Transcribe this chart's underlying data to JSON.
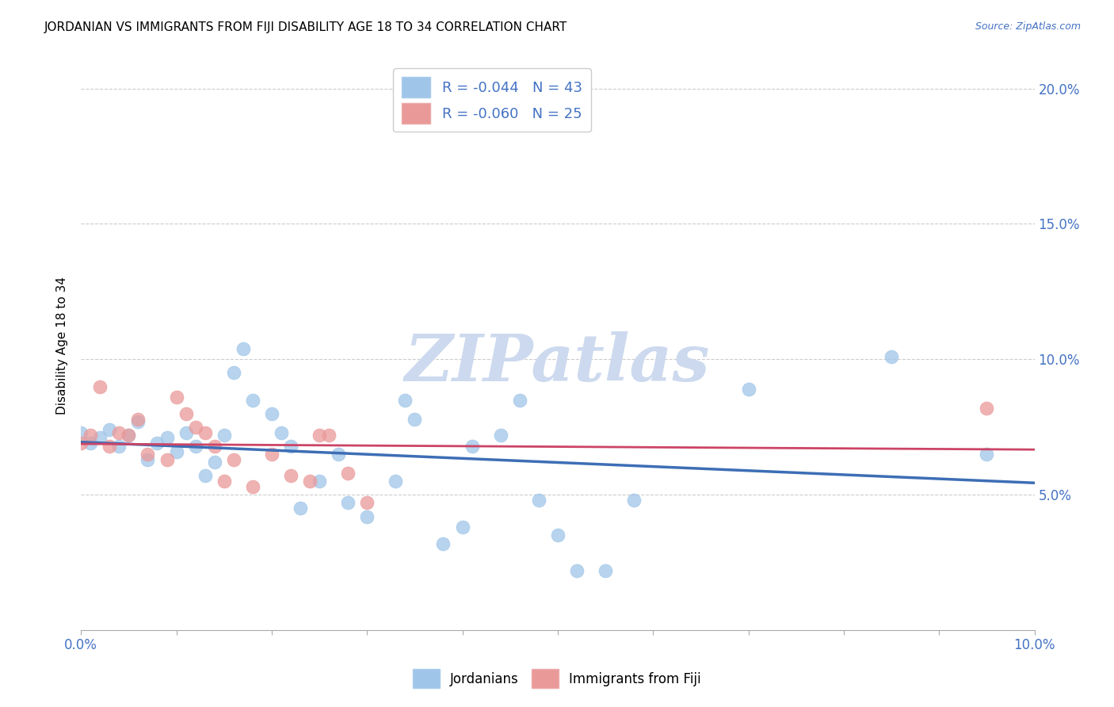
{
  "title": "JORDANIAN VS IMMIGRANTS FROM FIJI DISABILITY AGE 18 TO 34 CORRELATION CHART",
  "source": "Source: ZipAtlas.com",
  "ylabel": "Disability Age 18 to 34",
  "xlim": [
    0.0,
    0.1
  ],
  "ylim": [
    0.0,
    0.21
  ],
  "legend_r_blue": "R = -0.044",
  "legend_n_blue": "N = 43",
  "legend_r_pink": "R = -0.060",
  "legend_n_pink": "N = 25",
  "blue_color": "#9fc5e8",
  "pink_color": "#ea9999",
  "line_blue": "#3d6eb5",
  "line_pink": "#cc4466",
  "watermark": "ZIPatlas",
  "jordanians_x": [
    0.0,
    0.001,
    0.002,
    0.003,
    0.004,
    0.005,
    0.006,
    0.007,
    0.008,
    0.009,
    0.01,
    0.011,
    0.012,
    0.013,
    0.014,
    0.015,
    0.016,
    0.017,
    0.018,
    0.02,
    0.021,
    0.022,
    0.023,
    0.025,
    0.027,
    0.028,
    0.03,
    0.033,
    0.034,
    0.035,
    0.038,
    0.04,
    0.041,
    0.044,
    0.046,
    0.048,
    0.05,
    0.052,
    0.055,
    0.058,
    0.07,
    0.085,
    0.095
  ],
  "jordanians_y": [
    0.073,
    0.069,
    0.071,
    0.074,
    0.068,
    0.072,
    0.077,
    0.063,
    0.069,
    0.071,
    0.066,
    0.073,
    0.068,
    0.057,
    0.062,
    0.072,
    0.095,
    0.104,
    0.085,
    0.08,
    0.073,
    0.068,
    0.045,
    0.055,
    0.065,
    0.047,
    0.042,
    0.055,
    0.085,
    0.078,
    0.032,
    0.038,
    0.068,
    0.072,
    0.085,
    0.048,
    0.035,
    0.022,
    0.022,
    0.048,
    0.089,
    0.101,
    0.065
  ],
  "fiji_x": [
    0.0,
    0.001,
    0.002,
    0.003,
    0.004,
    0.005,
    0.006,
    0.007,
    0.009,
    0.01,
    0.011,
    0.012,
    0.013,
    0.014,
    0.015,
    0.016,
    0.018,
    0.02,
    0.022,
    0.024,
    0.025,
    0.026,
    0.028,
    0.03,
    0.095
  ],
  "fiji_y": [
    0.069,
    0.072,
    0.09,
    0.068,
    0.073,
    0.072,
    0.078,
    0.065,
    0.063,
    0.086,
    0.08,
    0.075,
    0.073,
    0.068,
    0.055,
    0.063,
    0.053,
    0.065,
    0.057,
    0.055,
    0.072,
    0.072,
    0.058,
    0.047,
    0.082
  ],
  "legend_label_jordanians": "Jordanians",
  "legend_label_fiji": "Immigrants from Fiji",
  "background_color": "#ffffff",
  "grid_color": "#cccccc",
  "axis_color": "#4472c4",
  "title_color": "#000000",
  "watermark_color": "#ccd9ee"
}
